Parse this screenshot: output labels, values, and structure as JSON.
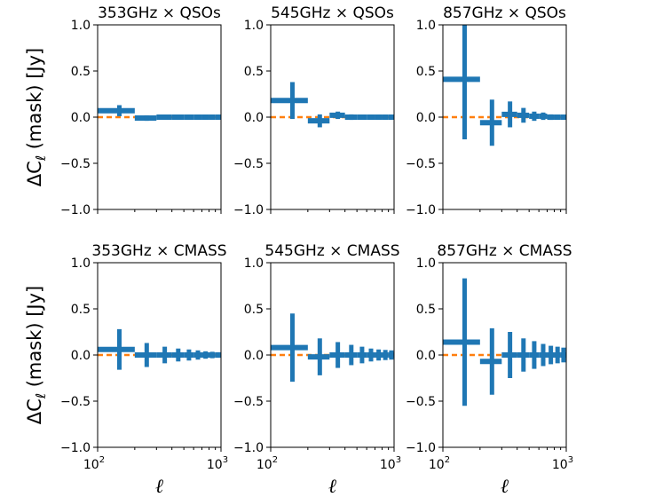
{
  "chart_data": {
    "type": "errorbar",
    "ylabel_main": "ΔC",
    "ylabel_sub": "ℓ",
    "ylabel_rest": " (mask) [Jy]",
    "xlabel": "ℓ",
    "xscale": "log",
    "xlim": [
      100,
      1000
    ],
    "ylim": [
      -1.0,
      1.0
    ],
    "yticks": [
      "−1.0",
      "−0.5",
      "0.0",
      "0.5",
      "1.0"
    ],
    "xtick_base": "10",
    "xtick_exponents": [
      "2",
      "3"
    ],
    "colors": {
      "points": "#1f77b4",
      "zero_line": "#ff7f0e"
    },
    "panels": [
      {
        "title": "353GHz × QSOs",
        "points": [
          {
            "x": 150,
            "xlo": 100,
            "xhi": 200,
            "y": 0.07,
            "yerr": 0.06
          },
          {
            "x": 250,
            "xlo": 200,
            "xhi": 300,
            "y": -0.01,
            "yerr": 0.03
          },
          {
            "x": 350,
            "xlo": 300,
            "xhi": 400,
            "y": 0.0,
            "yerr": 0.025
          },
          {
            "x": 450,
            "xlo": 400,
            "xhi": 500,
            "y": 0.0,
            "yerr": 0.02
          },
          {
            "x": 550,
            "xlo": 500,
            "xhi": 600,
            "y": 0.0,
            "yerr": 0.02
          },
          {
            "x": 650,
            "xlo": 600,
            "xhi": 700,
            "y": 0.0,
            "yerr": 0.015
          },
          {
            "x": 750,
            "xlo": 700,
            "xhi": 800,
            "y": 0.0,
            "yerr": 0.015
          },
          {
            "x": 850,
            "xlo": 800,
            "xhi": 900,
            "y": 0.0,
            "yerr": 0.015
          },
          {
            "x": 950,
            "xlo": 900,
            "xhi": 1000,
            "y": 0.0,
            "yerr": 0.015
          }
        ]
      },
      {
        "title": "545GHz × QSOs",
        "points": [
          {
            "x": 150,
            "xlo": 100,
            "xhi": 200,
            "y": 0.18,
            "yerr": 0.2
          },
          {
            "x": 250,
            "xlo": 200,
            "xhi": 300,
            "y": -0.04,
            "yerr": 0.07
          },
          {
            "x": 350,
            "xlo": 300,
            "xhi": 400,
            "y": 0.02,
            "yerr": 0.04
          },
          {
            "x": 450,
            "xlo": 400,
            "xhi": 500,
            "y": 0.0,
            "yerr": 0.03
          },
          {
            "x": 550,
            "xlo": 500,
            "xhi": 600,
            "y": 0.0,
            "yerr": 0.025
          },
          {
            "x": 650,
            "xlo": 600,
            "xhi": 700,
            "y": 0.0,
            "yerr": 0.02
          },
          {
            "x": 750,
            "xlo": 700,
            "xhi": 800,
            "y": 0.0,
            "yerr": 0.02
          },
          {
            "x": 850,
            "xlo": 800,
            "xhi": 900,
            "y": 0.0,
            "yerr": 0.02
          },
          {
            "x": 950,
            "xlo": 900,
            "xhi": 1000,
            "y": 0.0,
            "yerr": 0.015
          }
        ]
      },
      {
        "title": "857GHz × QSOs",
        "points": [
          {
            "x": 150,
            "xlo": 100,
            "xhi": 200,
            "y": 0.41,
            "yerr": 0.65
          },
          {
            "x": 250,
            "xlo": 200,
            "xhi": 300,
            "y": -0.06,
            "yerr": 0.25
          },
          {
            "x": 350,
            "xlo": 300,
            "xhi": 400,
            "y": 0.03,
            "yerr": 0.14
          },
          {
            "x": 450,
            "xlo": 400,
            "xhi": 500,
            "y": 0.02,
            "yerr": 0.08
          },
          {
            "x": 550,
            "xlo": 500,
            "xhi": 600,
            "y": 0.01,
            "yerr": 0.05
          },
          {
            "x": 650,
            "xlo": 600,
            "xhi": 700,
            "y": 0.01,
            "yerr": 0.04
          },
          {
            "x": 750,
            "xlo": 700,
            "xhi": 800,
            "y": 0.0,
            "yerr": 0.03
          },
          {
            "x": 850,
            "xlo": 800,
            "xhi": 900,
            "y": 0.0,
            "yerr": 0.025
          },
          {
            "x": 950,
            "xlo": 900,
            "xhi": 1000,
            "y": 0.0,
            "yerr": 0.02
          }
        ]
      },
      {
        "title": "353GHz × CMASS",
        "points": [
          {
            "x": 150,
            "xlo": 100,
            "xhi": 200,
            "y": 0.06,
            "yerr": 0.22
          },
          {
            "x": 250,
            "xlo": 200,
            "xhi": 300,
            "y": 0.0,
            "yerr": 0.13
          },
          {
            "x": 350,
            "xlo": 300,
            "xhi": 400,
            "y": 0.0,
            "yerr": 0.09
          },
          {
            "x": 450,
            "xlo": 400,
            "xhi": 500,
            "y": 0.0,
            "yerr": 0.07
          },
          {
            "x": 550,
            "xlo": 500,
            "xhi": 600,
            "y": 0.0,
            "yerr": 0.06
          },
          {
            "x": 650,
            "xlo": 600,
            "xhi": 700,
            "y": 0.0,
            "yerr": 0.05
          },
          {
            "x": 750,
            "xlo": 700,
            "xhi": 800,
            "y": 0.0,
            "yerr": 0.04
          },
          {
            "x": 850,
            "xlo": 800,
            "xhi": 900,
            "y": 0.0,
            "yerr": 0.035
          },
          {
            "x": 950,
            "xlo": 900,
            "xhi": 1000,
            "y": 0.0,
            "yerr": 0.03
          }
        ]
      },
      {
        "title": "545GHz × CMASS",
        "points": [
          {
            "x": 150,
            "xlo": 100,
            "xhi": 200,
            "y": 0.08,
            "yerr": 0.37
          },
          {
            "x": 250,
            "xlo": 200,
            "xhi": 300,
            "y": -0.02,
            "yerr": 0.2
          },
          {
            "x": 350,
            "xlo": 300,
            "xhi": 400,
            "y": 0.0,
            "yerr": 0.14
          },
          {
            "x": 450,
            "xlo": 400,
            "xhi": 500,
            "y": 0.0,
            "yerr": 0.11
          },
          {
            "x": 550,
            "xlo": 500,
            "xhi": 600,
            "y": 0.0,
            "yerr": 0.09
          },
          {
            "x": 650,
            "xlo": 600,
            "xhi": 700,
            "y": 0.0,
            "yerr": 0.07
          },
          {
            "x": 750,
            "xlo": 700,
            "xhi": 800,
            "y": 0.0,
            "yerr": 0.06
          },
          {
            "x": 850,
            "xlo": 800,
            "xhi": 900,
            "y": 0.0,
            "yerr": 0.055
          },
          {
            "x": 950,
            "xlo": 900,
            "xhi": 1000,
            "y": 0.0,
            "yerr": 0.05
          }
        ]
      },
      {
        "title": "857GHz × CMASS",
        "points": [
          {
            "x": 150,
            "xlo": 100,
            "xhi": 200,
            "y": 0.14,
            "yerr": 0.69
          },
          {
            "x": 250,
            "xlo": 200,
            "xhi": 300,
            "y": -0.07,
            "yerr": 0.36
          },
          {
            "x": 350,
            "xlo": 300,
            "xhi": 400,
            "y": 0.0,
            "yerr": 0.25
          },
          {
            "x": 450,
            "xlo": 400,
            "xhi": 500,
            "y": 0.0,
            "yerr": 0.18
          },
          {
            "x": 550,
            "xlo": 500,
            "xhi": 600,
            "y": 0.0,
            "yerr": 0.15
          },
          {
            "x": 650,
            "xlo": 600,
            "xhi": 700,
            "y": 0.0,
            "yerr": 0.12
          },
          {
            "x": 750,
            "xlo": 700,
            "xhi": 800,
            "y": 0.0,
            "yerr": 0.1
          },
          {
            "x": 850,
            "xlo": 800,
            "xhi": 900,
            "y": 0.0,
            "yerr": 0.09
          },
          {
            "x": 950,
            "xlo": 900,
            "xhi": 1000,
            "y": 0.0,
            "yerr": 0.08
          }
        ]
      }
    ]
  }
}
